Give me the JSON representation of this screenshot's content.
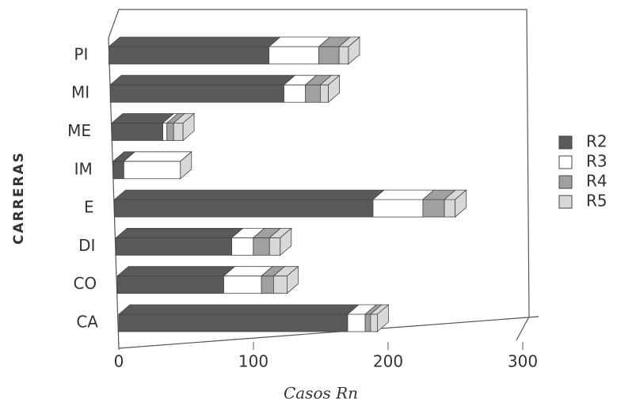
{
  "chart_data": {
    "type": "bar",
    "orientation": "horizontal",
    "stacked": true,
    "x_label": "Casos Rn",
    "y_label": "CARRERAS",
    "categories": [
      "CA",
      "CO",
      "DI",
      "E",
      "IM",
      "ME",
      "MI",
      "PI"
    ],
    "series": [
      {
        "name": "R2",
        "color": "#5a5a5a",
        "values": [
          170,
          79,
          86,
          192,
          8,
          38,
          129,
          119
        ]
      },
      {
        "name": "R3",
        "color": "#ffffff",
        "values": [
          13,
          28,
          16,
          37,
          42,
          3,
          16,
          37
        ]
      },
      {
        "name": "R4",
        "color": "#a0a0a0",
        "values": [
          4,
          9,
          12,
          16,
          0,
          5,
          11,
          15
        ]
      },
      {
        "name": "R5",
        "color": "#d8d8d8",
        "values": [
          5,
          10,
          8,
          8,
          0,
          7,
          6,
          7
        ]
      }
    ],
    "xlim": [
      0,
      300
    ],
    "xticks": [
      0,
      100,
      200,
      300
    ],
    "legend": "right"
  }
}
